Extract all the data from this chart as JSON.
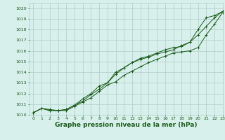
{
  "bg_color": "#d8f0ec",
  "grid_color": "#b0ccc8",
  "line_color": "#1a5c1a",
  "marker_color": "#1a5c1a",
  "xlabel": "Graphe pression niveau de la mer (hPa)",
  "xlabel_fontsize": 6.5,
  "xlim": [
    -0.5,
    23
  ],
  "ylim": [
    1010,
    1020.5
  ],
  "yticks": [
    1010,
    1011,
    1012,
    1013,
    1014,
    1015,
    1016,
    1017,
    1018,
    1019,
    1020
  ],
  "xticks": [
    0,
    1,
    2,
    3,
    4,
    5,
    6,
    7,
    8,
    9,
    10,
    11,
    12,
    13,
    14,
    15,
    16,
    17,
    18,
    19,
    20,
    21,
    22,
    23
  ],
  "series1_x": [
    0,
    1,
    2,
    3,
    4,
    5,
    6,
    7,
    8,
    9,
    10,
    11,
    12,
    13,
    14,
    15,
    16,
    17,
    18,
    19,
    20,
    21,
    22,
    23
  ],
  "series1_y": [
    1010.2,
    1010.6,
    1010.5,
    1010.4,
    1010.4,
    1010.8,
    1011.2,
    1011.6,
    1012.2,
    1012.8,
    1013.1,
    1013.7,
    1014.1,
    1014.5,
    1014.9,
    1015.2,
    1015.5,
    1015.8,
    1015.9,
    1016.0,
    1016.3,
    1017.5,
    1018.5,
    1019.6
  ],
  "series2_x": [
    0,
    1,
    2,
    3,
    4,
    5,
    6,
    7,
    8,
    9,
    10,
    11,
    12,
    13,
    14,
    15,
    16,
    17,
    18,
    19,
    20,
    21,
    22,
    23
  ],
  "series2_y": [
    1010.2,
    1010.6,
    1010.4,
    1010.4,
    1010.5,
    1010.9,
    1011.3,
    1011.9,
    1012.4,
    1013.0,
    1014.0,
    1014.4,
    1014.9,
    1015.2,
    1015.4,
    1015.7,
    1015.9,
    1016.1,
    1016.5,
    1016.8,
    1017.5,
    1018.3,
    1019.1,
    1019.7
  ],
  "series3_x": [
    0,
    1,
    2,
    3,
    4,
    5,
    6,
    7,
    8,
    9,
    10,
    11,
    12,
    13,
    14,
    15,
    16,
    17,
    18,
    19,
    20,
    21,
    22,
    23
  ],
  "series3_y": [
    1010.2,
    1010.6,
    1010.4,
    1010.4,
    1010.5,
    1010.9,
    1011.5,
    1012.0,
    1012.7,
    1013.0,
    1013.8,
    1014.4,
    1014.9,
    1015.3,
    1015.5,
    1015.8,
    1016.1,
    1016.3,
    1016.4,
    1016.8,
    1018.0,
    1019.1,
    1019.3,
    1019.7
  ]
}
